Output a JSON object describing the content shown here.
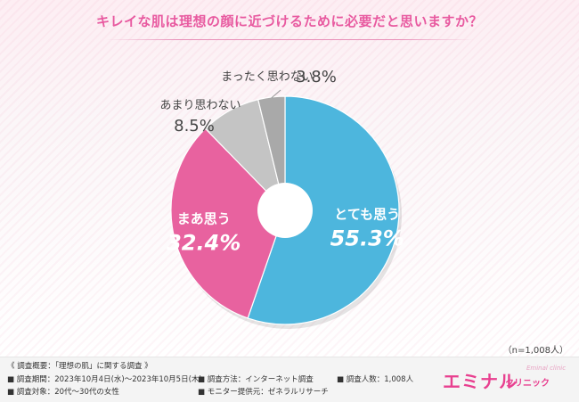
{
  "title": "キレイな肌は理想の顔に近づけるために必要だと思いますか？",
  "sample_size": "（n=1,008人）",
  "chart_data": {
    "type": "pie",
    "style": "donut",
    "title": "キレイな肌は理想の顔に近づけるために必要だと思いますか？",
    "slices": [
      {
        "label": "とても思う",
        "value": 55.3,
        "value_text": "55.3%",
        "color": "#4db6dd"
      },
      {
        "label": "まあ思う",
        "value": 32.4,
        "value_text": "32.4%",
        "color": "#e8629f"
      },
      {
        "label": "あまり思わない",
        "value": 8.5,
        "value_text": "8.5%",
        "color": "#c4c4c4"
      },
      {
        "label": "まったく思わない",
        "value": 3.8,
        "value_text": "3.8%",
        "color": "#a9a9a9"
      }
    ]
  },
  "footer": {
    "overview": "《 調査概要：「理想の肌」に関する調査 》",
    "period": "■ 調査期間：2023年10月4日(水)～2023年10月5日(木)",
    "method": "■ 調査方法：インターネット調査",
    "count": "■ 調査人数：1,008人",
    "target": "■ 調査対象：20代～30代の女性",
    "provider": "■ モニター提供元：ゼネラルリサーチ"
  },
  "brand": {
    "name": "エミナル",
    "sub": "クリニック",
    "script": "Eminal clinic"
  }
}
